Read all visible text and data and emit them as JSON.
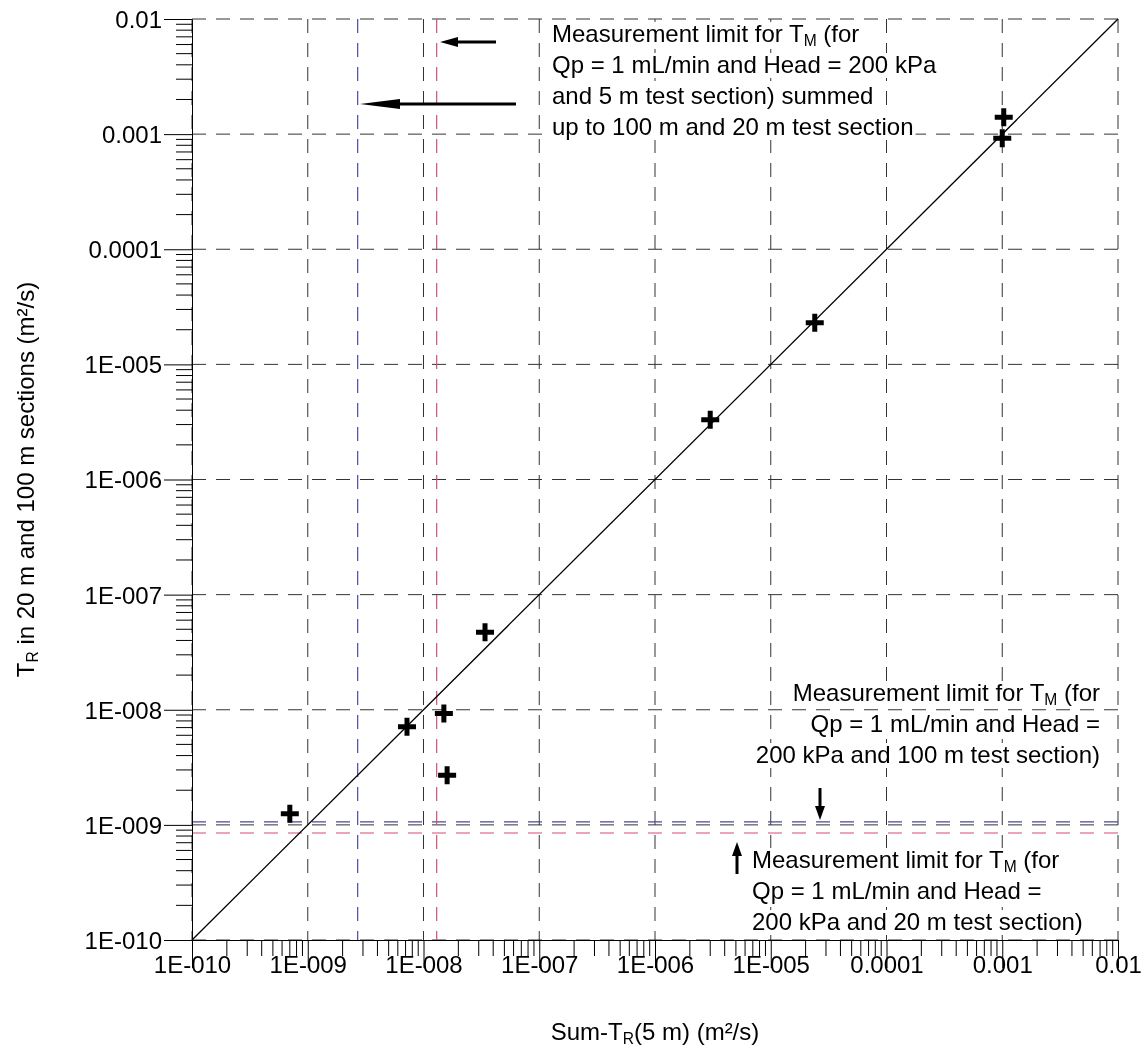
{
  "chart_data": {
    "type": "scatter",
    "xlabel": "Sum-T$_{R}$(5 m) (m²/s)",
    "ylabel": "T$_{R}$ in 20 m and 100 m sections (m²/s)",
    "log": "xy",
    "grid": true,
    "marker": "cross",
    "xlim": [
      1e-10,
      0.01
    ],
    "ylim": [
      1e-10,
      0.01
    ],
    "xticks": [
      {
        "value": 1e-10,
        "label": "1E-010"
      },
      {
        "value": 1e-09,
        "label": "1E-009"
      },
      {
        "value": 1e-08,
        "label": "1E-008"
      },
      {
        "value": 1e-07,
        "label": "1E-007"
      },
      {
        "value": 1e-06,
        "label": "1E-006"
      },
      {
        "value": 1e-05,
        "label": "1E-005"
      },
      0.0001,
      0.001,
      0.01
    ],
    "yticks": [
      {
        "value": 1e-10,
        "label": "1E-010"
      },
      {
        "value": 1e-09,
        "label": "1E-009"
      },
      {
        "value": 1e-08,
        "label": "1E-008"
      },
      {
        "value": 1e-07,
        "label": "1E-007"
      },
      {
        "value": 1e-06,
        "label": "1E-006"
      },
      {
        "value": 1e-05,
        "label": "1E-005"
      },
      0.0001,
      0.001,
      0.01
    ],
    "x": [
      7e-10,
      7.2e-09,
      1.5e-08,
      1.6e-08,
      3.4e-08,
      3e-06,
      2.4e-05,
      0.00103,
      0.001
    ],
    "series": [
      {
        "color": "#000000",
        "values": [
          1.25e-09,
          7.1e-09,
          9.3e-09,
          2.7e-09,
          4.7e-08,
          3.3e-06,
          2.3e-05,
          0.0014,
          0.00092
        ]
      },
      {
        "type": "line",
        "color": "#000000",
        "marker": "none",
        "x": [
          1e-10,
          0.01
        ],
        "values": [
          1e-10,
          0.01
        ]
      }
    ],
    "ref_lines": [
      {
        "axis": "y",
        "value": 1.06e-09,
        "color": "#4a4aa0",
        "line_style": "dashed"
      },
      {
        "axis": "y",
        "value": 8.5e-10,
        "color": "#d05070",
        "line_style": "dashed"
      },
      {
        "axis": "x",
        "value": 2.7e-09,
        "color": "#4a4aa0",
        "line_style": "dashed"
      },
      {
        "axis": "x",
        "value": 1.3e-08,
        "color": "#d05070",
        "line_style": "dashed"
      }
    ],
    "annotations": [
      "Measurement limit for T$_{M}$ (for\nQp = 1 mL/min and Head = 200 kPa\nand 5 m test section) summed\nup to 100 m and 20 m test section",
      "Measurement limit for T$_{M}$ (for\nQp = 1 mL/min and Head =\n200 kPa and 100 m test section)",
      "Measurement limit for T$_{M}$ (for\nQp = 1 mL/min and Head =\n200 kPa and 20 m test section)"
    ]
  }
}
